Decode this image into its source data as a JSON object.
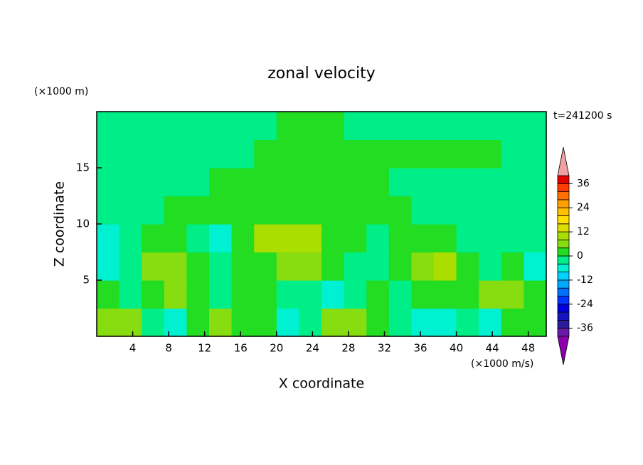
{
  "chart_data": {
    "type": "contour",
    "title": "zonal velocity",
    "y_unit_label": "(×1000 m)",
    "time_label": "t=241200 s",
    "xlabel": "X coordinate",
    "ylabel": "Z coordinate",
    "x_unit_label": "(×1000 m/s)",
    "x": [
      1.25,
      3.75,
      6.25,
      8.75,
      11.25,
      13.75,
      16.25,
      18.75,
      21.25,
      23.75,
      26.25,
      28.75,
      31.25,
      33.75,
      36.25,
      38.75,
      41.25,
      43.75,
      46.25,
      48.75
    ],
    "y": [
      1.25,
      3.75,
      6.25,
      8.75,
      11.25,
      13.75,
      16.25,
      18.75
    ],
    "z": [
      [
        7,
        5,
        -2,
        -6,
        2,
        6,
        1,
        1,
        -5,
        -3,
        6,
        7,
        1,
        -1,
        -6,
        -7,
        -2,
        -5,
        1,
        3
      ],
      [
        2,
        -2,
        2,
        5,
        2,
        -3,
        1,
        2,
        -3,
        -2,
        -5,
        -3,
        1,
        -3,
        2,
        3,
        1,
        4,
        6,
        1
      ],
      [
        -7,
        -3,
        6,
        7,
        1,
        -4,
        1,
        2,
        7,
        6,
        1,
        -1,
        -2,
        3,
        7,
        10,
        2,
        -2,
        1,
        -5
      ],
      [
        -6,
        -2,
        2,
        2,
        -1,
        -5,
        1,
        8,
        10,
        8,
        2,
        1,
        -2,
        1,
        2,
        2,
        -2,
        -1,
        -2,
        -2
      ],
      [
        -2,
        -2,
        -2,
        1,
        1,
        1,
        1,
        1,
        1,
        1,
        1,
        1,
        1,
        1,
        -2,
        -2,
        -2,
        -2,
        -2,
        -2
      ],
      [
        -2,
        -2,
        -2,
        -2,
        -2,
        1,
        1,
        1,
        1,
        1,
        1,
        1,
        1,
        -1,
        -2,
        -2,
        -2,
        -2,
        -2,
        -2
      ],
      [
        -2,
        -2,
        -2,
        -2,
        -2,
        -2,
        -1,
        1,
        1,
        1,
        1,
        1,
        1,
        1,
        1,
        1,
        1,
        1,
        -2,
        -2
      ],
      [
        -2,
        -2,
        -2,
        -2,
        -2,
        -2,
        -2,
        -2,
        1,
        1,
        1,
        -1,
        -2,
        -2,
        -2,
        -2,
        -2,
        -2,
        -2,
        -2
      ]
    ],
    "xlim": [
      0,
      50
    ],
    "ylim": [
      0,
      20
    ],
    "xticks": [
      4,
      8,
      12,
      16,
      20,
      24,
      28,
      32,
      36,
      40,
      44,
      48
    ],
    "yticks": [
      5,
      10,
      15
    ],
    "colorbar": {
      "levels": [
        -40,
        -36,
        -32,
        -28,
        -24,
        -20,
        -16,
        -12,
        -8,
        -4,
        0,
        4,
        8,
        12,
        16,
        20,
        24,
        28,
        32,
        36,
        40
      ],
      "colors": [
        "#6a1aa8",
        "#2c1c9c",
        "#1414c0",
        "#0000dc",
        "#0034ff",
        "#0070ff",
        "#00a8ff",
        "#00d2ff",
        "#00f0d2",
        "#00ee88",
        "#22dd22",
        "#88dd11",
        "#aadd00",
        "#dddd00",
        "#ffe000",
        "#ffc000",
        "#ffa000",
        "#ff7000",
        "#ff3c00",
        "#e00000"
      ],
      "extend_colors": [
        "#8a00aa",
        "#f0a0a0"
      ],
      "ticks": [
        -36,
        -24,
        -12,
        0,
        12,
        24,
        36
      ]
    }
  }
}
